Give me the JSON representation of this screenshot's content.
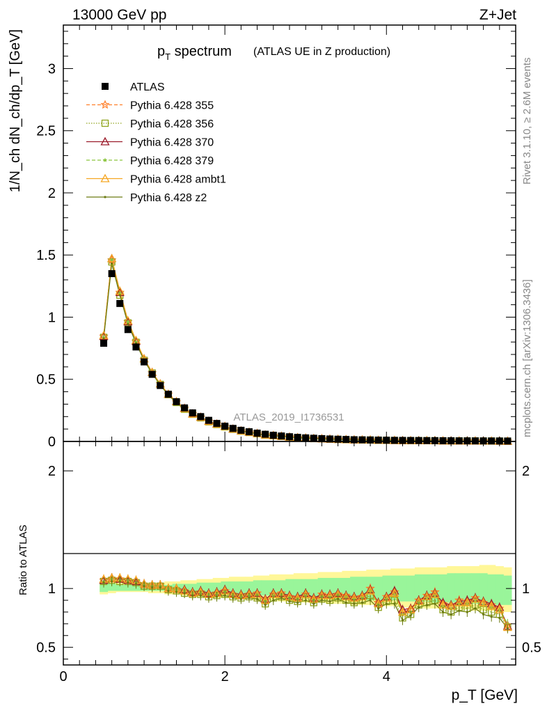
{
  "header": {
    "left_title": "13000 GeV pp",
    "right_title": "Z+Jet",
    "plot_title_main": "p",
    "plot_title_sub": "T",
    "plot_title_rest": " spectrum",
    "plot_title_paren": "(ATLAS UE in Z production)",
    "watermark": "ATLAS_2019_I1736531",
    "side_text_top": "Rivet 3.1.10, ≥ 2.6M events",
    "side_text_bottom": "mcplots.cern.ch [arXiv:1306.3436]"
  },
  "colors": {
    "atlas": "#000000",
    "p355": "#ff7f2a",
    "p356": "#8fa31c",
    "p370": "#9b1b2a",
    "p379": "#8bc53f",
    "ambt1": "#f5a623",
    "z2": "#6b7a12",
    "band_yellow": "#fff799",
    "band_green": "#99f59a"
  },
  "chart_data": {
    "type": "line",
    "title": "p_T spectrum (ATLAS UE in Z production)",
    "xlabel": "p_T [GeV]",
    "ylabel": "1/N_ch dN_ch/dp_T [GeV]",
    "ratio_ylabel": "Ratio to ATLAS",
    "xlim": [
      0,
      5.6
    ],
    "ylim": [
      0,
      3.35
    ],
    "ratio_ylim": [
      0.35,
      2.25
    ],
    "x_ticks": [
      "0",
      "2",
      "4"
    ],
    "y_ticks": [
      "0",
      "0.5",
      "1",
      "1.5",
      "2",
      "2.5",
      "3"
    ],
    "ratio_y_ticks": [
      "0.5",
      "1",
      "2"
    ],
    "legend_position": "top-left",
    "x": [
      0.5,
      0.6,
      0.7,
      0.8,
      0.9,
      1.0,
      1.1,
      1.2,
      1.3,
      1.4,
      1.5,
      1.6,
      1.7,
      1.8,
      1.9,
      2.0,
      2.1,
      2.2,
      2.3,
      2.4,
      2.5,
      2.6,
      2.7,
      2.8,
      2.9,
      3.0,
      3.1,
      3.2,
      3.3,
      3.4,
      3.5,
      3.6,
      3.7,
      3.8,
      3.9,
      4.0,
      4.1,
      4.2,
      4.3,
      4.4,
      4.5,
      4.6,
      4.7,
      4.8,
      4.9,
      5.0,
      5.1,
      5.2,
      5.3,
      5.4,
      5.5
    ],
    "atlas": [
      0.79,
      1.35,
      1.11,
      0.9,
      0.76,
      0.64,
      0.54,
      0.45,
      0.38,
      0.32,
      0.27,
      0.23,
      0.2,
      0.17,
      0.145,
      0.123,
      0.105,
      0.09,
      0.078,
      0.067,
      0.058,
      0.05,
      0.044,
      0.038,
      0.033,
      0.029,
      0.026,
      0.023,
      0.02,
      0.018,
      0.016,
      0.014,
      0.013,
      0.012,
      0.011,
      0.01,
      0.009,
      0.0085,
      0.008,
      0.0075,
      0.007,
      0.0065,
      0.006,
      0.0055,
      0.005,
      0.0048,
      0.0045,
      0.0042,
      0.004,
      0.0038,
      0.0035
    ],
    "band_yellow_low": [
      0.95,
      0.96,
      0.97,
      0.97,
      0.97,
      0.97,
      0.96,
      0.96,
      0.95,
      0.95,
      0.94,
      0.94,
      0.93,
      0.93,
      0.92,
      0.92,
      0.92,
      0.91,
      0.91,
      0.9,
      0.9,
      0.9,
      0.89,
      0.89,
      0.89,
      0.88,
      0.88,
      0.88,
      0.87,
      0.87,
      0.87,
      0.86,
      0.86,
      0.86,
      0.85,
      0.85,
      0.85,
      0.84,
      0.84,
      0.84,
      0.83,
      0.83,
      0.83,
      0.82,
      0.82,
      0.82,
      0.81,
      0.81,
      0.81,
      0.8,
      0.8
    ],
    "band_yellow_high": [
      1.06,
      1.06,
      1.06,
      1.05,
      1.05,
      1.05,
      1.05,
      1.05,
      1.06,
      1.06,
      1.07,
      1.07,
      1.08,
      1.08,
      1.09,
      1.09,
      1.1,
      1.1,
      1.1,
      1.11,
      1.11,
      1.12,
      1.12,
      1.12,
      1.13,
      1.13,
      1.13,
      1.14,
      1.14,
      1.14,
      1.15,
      1.15,
      1.15,
      1.16,
      1.16,
      1.16,
      1.17,
      1.17,
      1.17,
      1.18,
      1.18,
      1.18,
      1.18,
      1.19,
      1.19,
      1.19,
      1.19,
      1.2,
      1.2,
      1.19,
      1.18
    ],
    "band_green_low": [
      0.97,
      0.98,
      0.98,
      0.98,
      0.98,
      0.98,
      0.98,
      0.98,
      0.97,
      0.97,
      0.97,
      0.96,
      0.96,
      0.96,
      0.95,
      0.95,
      0.95,
      0.95,
      0.94,
      0.94,
      0.94,
      0.93,
      0.93,
      0.93,
      0.93,
      0.92,
      0.92,
      0.92,
      0.92,
      0.91,
      0.91,
      0.91,
      0.91,
      0.9,
      0.9,
      0.9,
      0.9,
      0.89,
      0.89,
      0.89,
      0.89,
      0.88,
      0.88,
      0.88,
      0.88,
      0.87,
      0.87,
      0.87,
      0.87,
      0.86,
      0.86
    ],
    "band_green_high": [
      1.04,
      1.04,
      1.03,
      1.03,
      1.03,
      1.03,
      1.03,
      1.03,
      1.03,
      1.04,
      1.04,
      1.04,
      1.05,
      1.05,
      1.05,
      1.06,
      1.06,
      1.06,
      1.06,
      1.07,
      1.07,
      1.07,
      1.07,
      1.08,
      1.08,
      1.08,
      1.08,
      1.09,
      1.09,
      1.09,
      1.09,
      1.1,
      1.1,
      1.1,
      1.1,
      1.11,
      1.11,
      1.11,
      1.11,
      1.12,
      1.12,
      1.12,
      1.12,
      1.13,
      1.13,
      1.13,
      1.13,
      1.13,
      1.12,
      1.12,
      1.11
    ],
    "series": [
      {
        "name": "ATLAS",
        "key": "atlas",
        "marker": "square",
        "line": "none"
      },
      {
        "name": "Pythia 6.428 355",
        "key": "p355",
        "marker": "star",
        "line": "dashed",
        "ratio": [
          1.07,
          1.08,
          1.08,
          1.07,
          1.06,
          1.03,
          1.02,
          1.03,
          1.0,
          0.99,
          0.98,
          0.96,
          0.97,
          0.95,
          0.96,
          0.98,
          0.95,
          0.94,
          0.95,
          0.96,
          0.9,
          0.95,
          0.96,
          0.93,
          0.92,
          0.95,
          0.91,
          0.95,
          0.94,
          0.95,
          0.94,
          0.92,
          0.93,
          1.0,
          0.88,
          0.93,
          0.97,
          0.8,
          0.82,
          0.9,
          0.94,
          0.97,
          0.87,
          0.85,
          0.9,
          0.89,
          0.92,
          0.88,
          0.86,
          0.83,
          0.69
        ]
      },
      {
        "name": "Pythia 6.428 356",
        "key": "p356",
        "marker": "square-open",
        "line": "dotted",
        "ratio": [
          1.06,
          1.07,
          1.06,
          1.06,
          1.05,
          1.02,
          1.02,
          1.02,
          0.99,
          0.98,
          0.96,
          0.95,
          0.95,
          0.93,
          0.94,
          0.95,
          0.93,
          0.92,
          0.93,
          0.92,
          0.87,
          0.92,
          0.93,
          0.9,
          0.89,
          0.92,
          0.88,
          0.91,
          0.9,
          0.92,
          0.9,
          0.88,
          0.9,
          0.94,
          0.84,
          0.89,
          0.9,
          0.75,
          0.78,
          0.86,
          0.88,
          0.9,
          0.82,
          0.8,
          0.84,
          0.83,
          0.86,
          0.82,
          0.8,
          0.78,
          0.67
        ]
      },
      {
        "name": "Pythia 6.428 370",
        "key": "p370",
        "marker": "triangle-open",
        "line": "solid",
        "ratio": [
          1.07,
          1.09,
          1.08,
          1.07,
          1.06,
          1.04,
          1.03,
          1.03,
          1.0,
          1.0,
          0.99,
          0.97,
          0.98,
          0.96,
          0.97,
          0.99,
          0.96,
          0.95,
          0.96,
          0.96,
          0.91,
          0.96,
          0.96,
          0.94,
          0.93,
          0.96,
          0.92,
          0.95,
          0.95,
          0.96,
          0.94,
          0.93,
          0.94,
          0.99,
          0.88,
          0.93,
          0.98,
          0.82,
          0.83,
          0.9,
          0.94,
          0.96,
          0.88,
          0.86,
          0.89,
          0.9,
          0.92,
          0.89,
          0.87,
          0.84,
          0.68
        ]
      },
      {
        "name": "Pythia 6.428 379",
        "key": "p379",
        "marker": "star-small",
        "line": "dashed",
        "ratio": [
          1.06,
          1.08,
          1.07,
          1.07,
          1.05,
          1.03,
          1.02,
          1.02,
          1.0,
          0.99,
          0.98,
          0.96,
          0.96,
          0.95,
          0.95,
          0.97,
          0.94,
          0.93,
          0.94,
          0.95,
          0.89,
          0.94,
          0.95,
          0.92,
          0.91,
          0.94,
          0.9,
          0.93,
          0.93,
          0.95,
          0.93,
          0.91,
          0.92,
          0.98,
          0.86,
          0.91,
          0.95,
          0.78,
          0.8,
          0.88,
          0.92,
          0.94,
          0.85,
          0.83,
          0.87,
          0.87,
          0.9,
          0.86,
          0.84,
          0.82,
          0.7
        ]
      },
      {
        "name": "Pythia 6.428 ambt1",
        "key": "ambt1",
        "marker": "triangle-open",
        "line": "solid",
        "ratio": [
          1.08,
          1.09,
          1.09,
          1.08,
          1.07,
          1.04,
          1.03,
          1.03,
          1.0,
          1.0,
          0.98,
          0.96,
          0.97,
          0.95,
          0.96,
          0.98,
          0.95,
          0.94,
          0.95,
          0.95,
          0.9,
          0.95,
          0.95,
          0.93,
          0.92,
          0.95,
          0.91,
          0.94,
          0.94,
          0.95,
          0.93,
          0.92,
          0.93,
          0.98,
          0.87,
          0.92,
          0.96,
          0.8,
          0.82,
          0.89,
          0.93,
          0.95,
          0.86,
          0.85,
          0.88,
          0.88,
          0.91,
          0.88,
          0.85,
          0.82,
          0.67
        ]
      },
      {
        "name": "Pythia 6.428 z2",
        "key": "z2",
        "marker": "dot",
        "line": "solid",
        "ratio": [
          1.05,
          1.06,
          1.06,
          1.05,
          1.04,
          1.02,
          1.01,
          1.01,
          0.98,
          0.97,
          0.96,
          0.94,
          0.94,
          0.92,
          0.93,
          0.94,
          0.92,
          0.91,
          0.92,
          0.91,
          0.86,
          0.9,
          0.92,
          0.89,
          0.88,
          0.9,
          0.87,
          0.9,
          0.89,
          0.91,
          0.88,
          0.87,
          0.88,
          0.9,
          0.83,
          0.87,
          0.87,
          0.73,
          0.77,
          0.84,
          0.86,
          0.87,
          0.8,
          0.78,
          0.81,
          0.8,
          0.83,
          0.78,
          0.76,
          0.75,
          0.66
        ]
      }
    ]
  }
}
